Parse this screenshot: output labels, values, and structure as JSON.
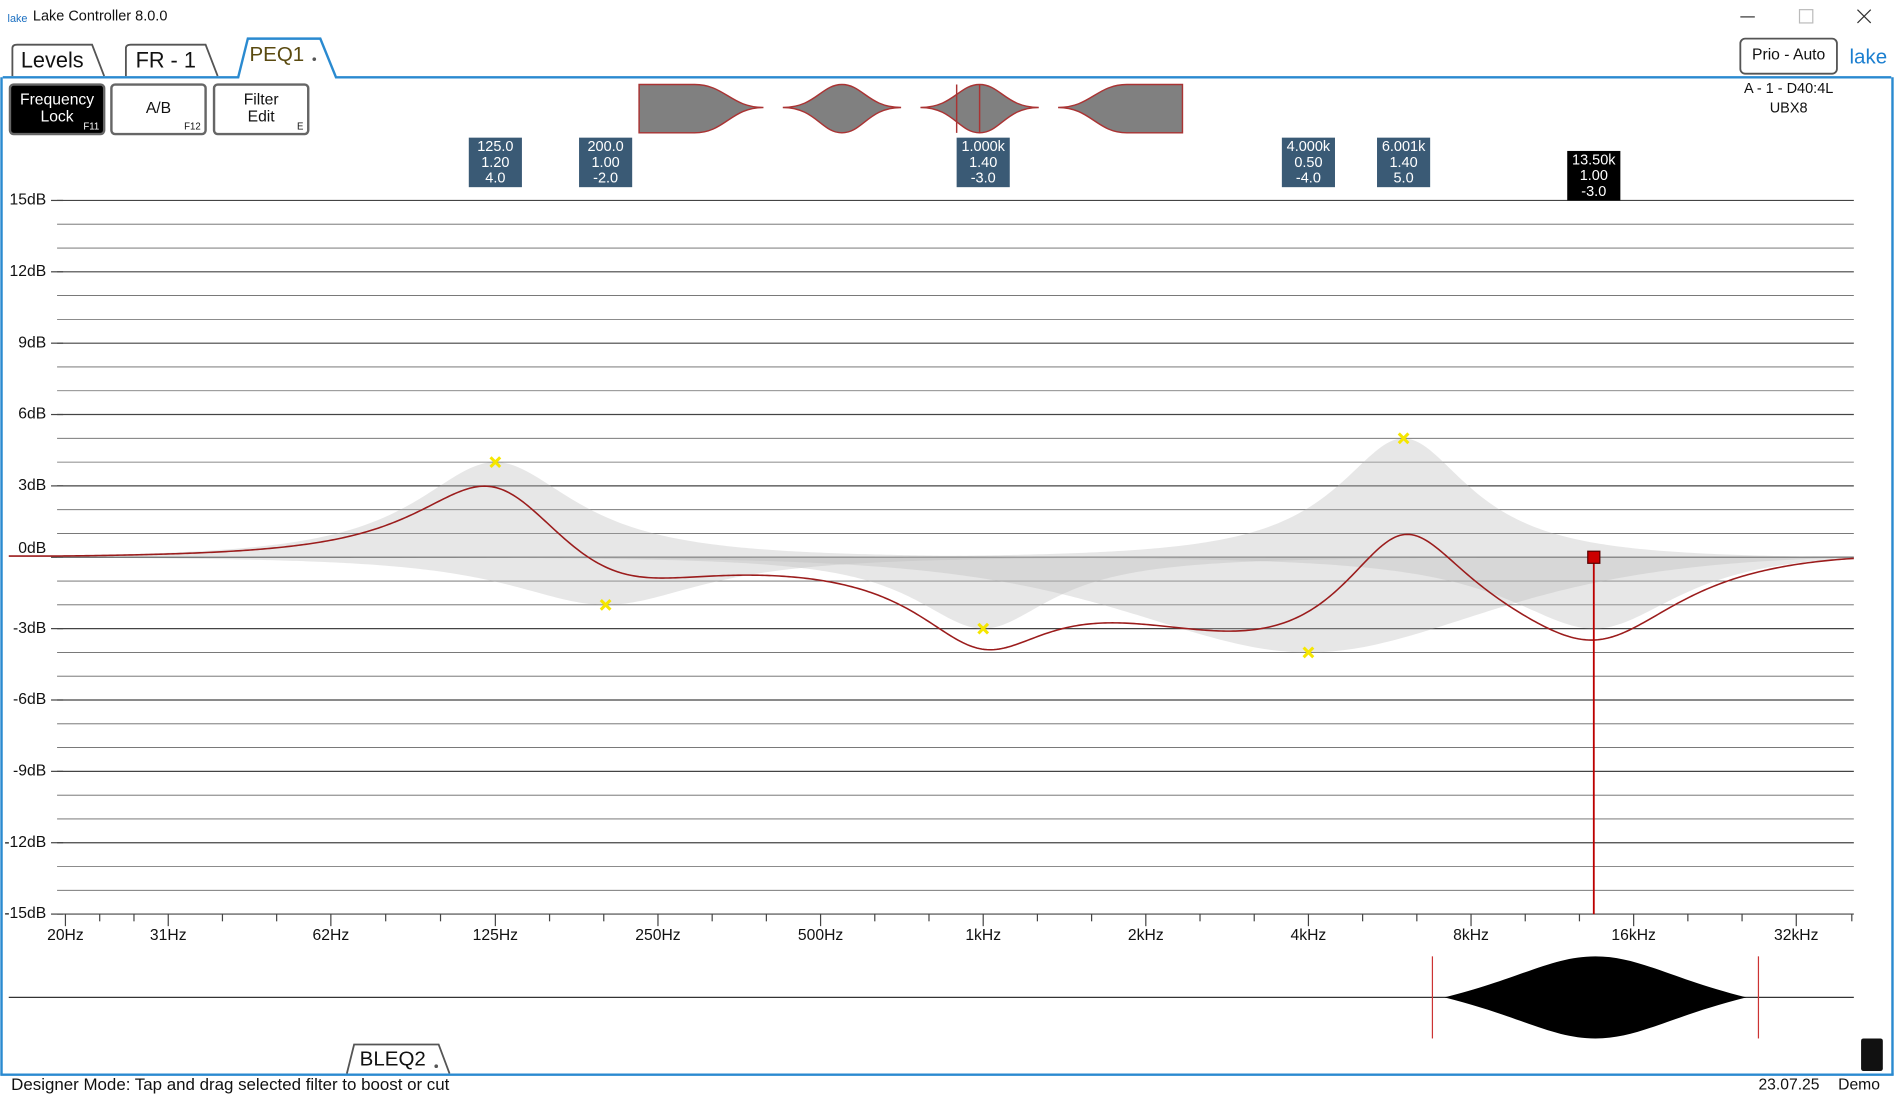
{
  "window": {
    "title": "Lake Controller 8.0.0",
    "icon": "lake"
  },
  "tabs": [
    "Levels",
    "FR - 1",
    "PEQ1"
  ],
  "buttons": [
    {
      "label": [
        "Frequency",
        "Lock"
      ],
      "key": "F11"
    },
    {
      "label": [
        "A/B"
      ],
      "key": "F12"
    },
    {
      "label": [
        "Filter",
        "Edit"
      ],
      "key": "E"
    }
  ],
  "prio_button": "Prio - Auto",
  "brand": "lake",
  "device": [
    "A - 1 - D40:4L",
    "UBX8"
  ],
  "chart_data": {
    "type": "line",
    "xscale": "log",
    "xlim": [
      19.3,
      40900
    ],
    "ylim": [
      -15,
      15
    ],
    "grid": true,
    "curve_color": "#9b1c1c",
    "xticks": [
      {
        "value": 20,
        "label": "20Hz"
      },
      {
        "value": 31,
        "label": "31Hz"
      },
      {
        "value": 62,
        "label": "62Hz"
      },
      {
        "value": 125,
        "label": "125Hz"
      },
      {
        "value": 250,
        "label": "250Hz"
      },
      {
        "value": 500,
        "label": "500Hz"
      },
      {
        "value": 1000,
        "label": "1kHz"
      },
      {
        "value": 2000,
        "label": "2kHz"
      },
      {
        "value": 4000,
        "label": "4kHz"
      },
      {
        "value": 8000,
        "label": "8kHz"
      },
      {
        "value": 16000,
        "label": "16kHz"
      },
      {
        "value": 32000,
        "label": "32kHz"
      }
    ],
    "yticks": [
      {
        "value": 15,
        "label": "15dB"
      },
      {
        "value": 12,
        "label": "12dB"
      },
      {
        "value": 9,
        "label": "9dB"
      },
      {
        "value": 6,
        "label": "6dB"
      },
      {
        "value": 3,
        "label": "3dB"
      },
      {
        "value": 0,
        "label": "0dB"
      },
      {
        "value": -3,
        "label": "-3dB"
      },
      {
        "value": -6,
        "label": "-6dB"
      },
      {
        "value": -9,
        "label": "-9dB"
      },
      {
        "value": -12,
        "label": "-12dB"
      },
      {
        "value": -15,
        "label": "-15dB"
      }
    ],
    "filters": [
      {
        "freq": {
          "value": 125,
          "label": "125.0"
        },
        "q": {
          "value": 1.2,
          "label": "1.20"
        },
        "gain": {
          "value": 4,
          "label": "4.0"
        }
      },
      {
        "freq": {
          "value": 200,
          "label": "200.0"
        },
        "q": {
          "value": 1,
          "label": "1.00"
        },
        "gain": {
          "value": -2,
          "label": "-2.0"
        }
      },
      {
        "freq": {
          "value": 1000,
          "label": "1.000k"
        },
        "q": {
          "value": 1.4,
          "label": "1.40"
        },
        "gain": {
          "value": -3,
          "label": "-3.0"
        }
      },
      {
        "freq": {
          "value": 4000,
          "label": "4.000k"
        },
        "q": {
          "value": 0.5,
          "label": "0.50"
        },
        "gain": {
          "value": -4,
          "label": "-4.0"
        }
      },
      {
        "freq": {
          "value": 6001,
          "label": "6.001k"
        },
        "q": {
          "value": 1.4,
          "label": "1.40"
        },
        "gain": {
          "value": 5,
          "label": "5.0"
        }
      },
      {
        "freq": {
          "value": 13500,
          "label": "13.50k"
        },
        "q": {
          "value": 1,
          "label": "1.00"
        },
        "gain": {
          "value": -3,
          "label": "-3.0"
        }
      }
    ],
    "selected_filter": 5
  },
  "bottom_tab": "BLEQ2",
  "status": {
    "message": "Designer Mode: Tap and drag selected filter to boost or cut",
    "date": "23.07.25",
    "mode": "Demo"
  }
}
